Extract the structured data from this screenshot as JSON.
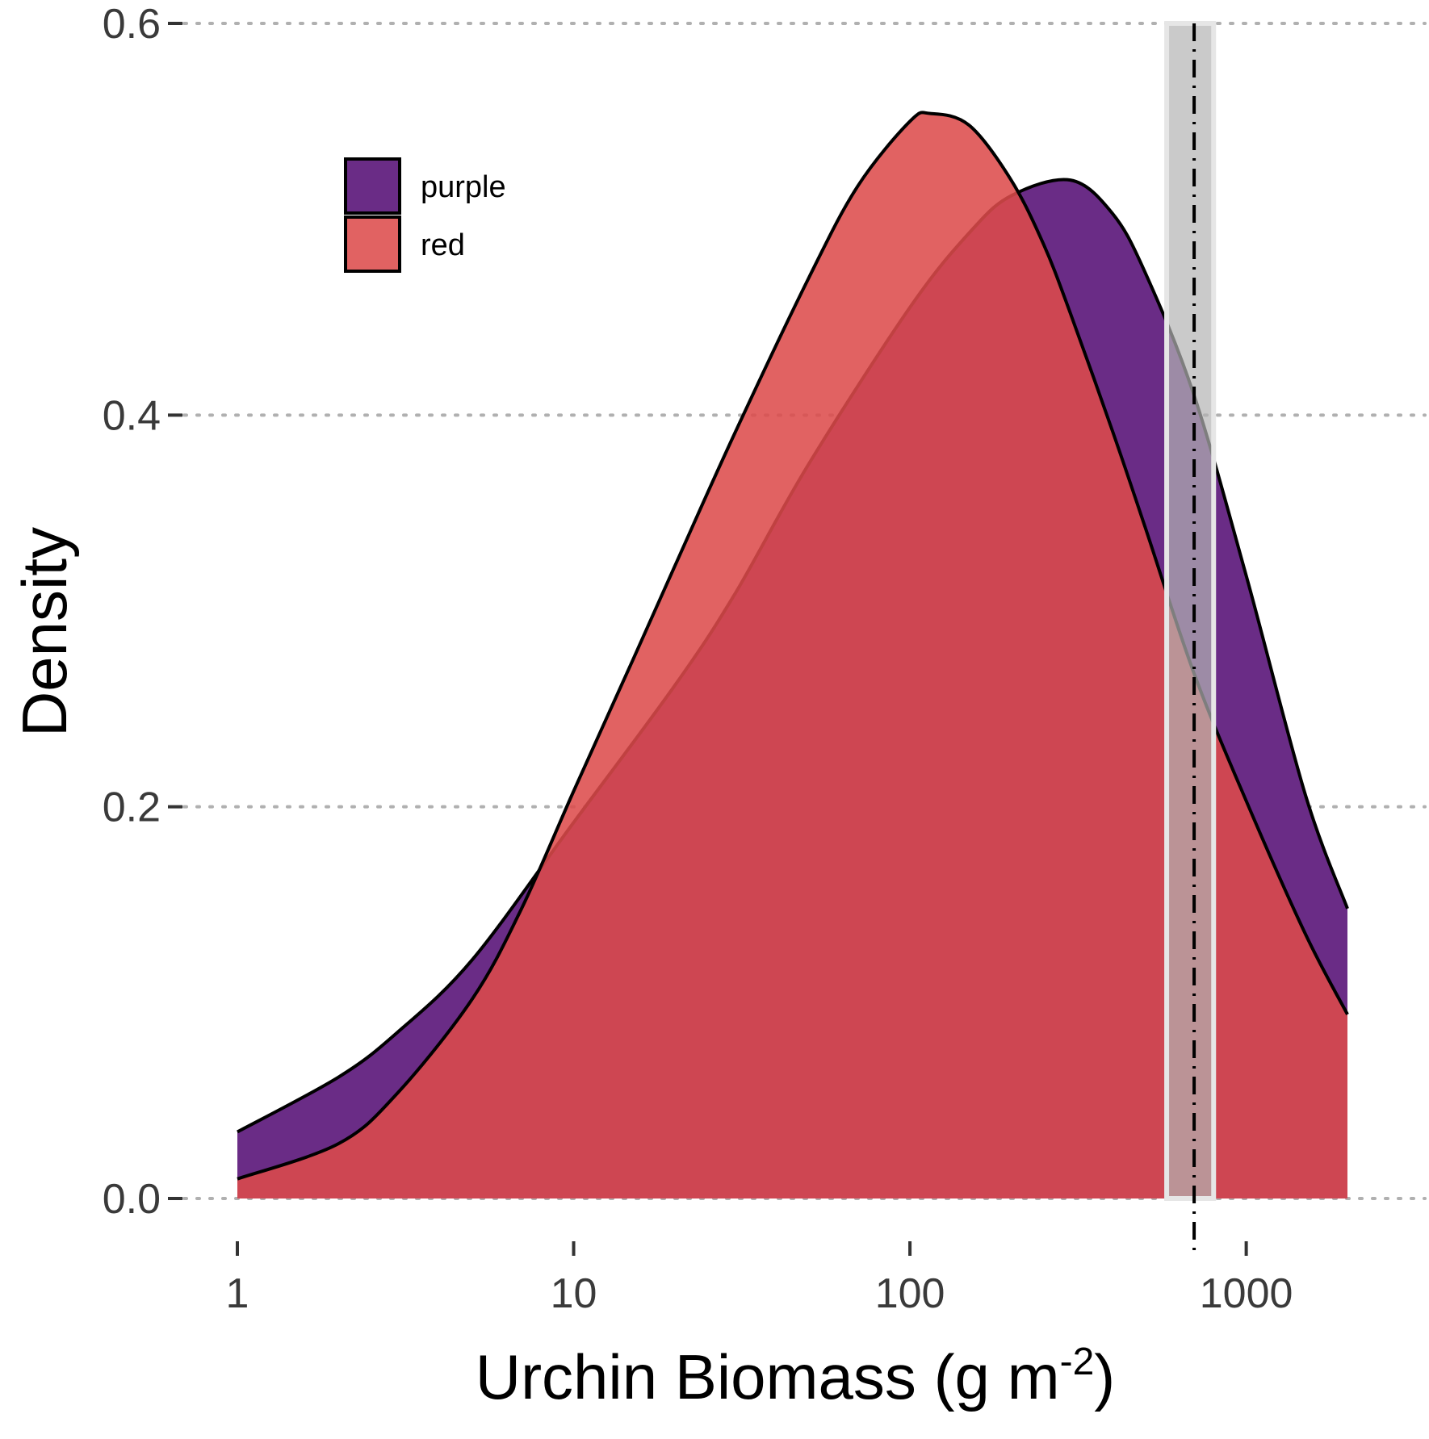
{
  "chart_data": {
    "type": "area",
    "xlabel": "Urchin Biomass (g m",
    "xlabel_superscript": "-2",
    "xlabel_suffix": ")",
    "ylabel": "Density",
    "x_scale": "log10",
    "xlim": [
      1,
      2000
    ],
    "ylim": [
      0,
      0.6
    ],
    "x_ticks": [
      1,
      10,
      100,
      1000
    ],
    "x_tick_labels": [
      "1",
      "10",
      "100",
      "1000"
    ],
    "y_ticks": [
      0,
      0.2,
      0.4,
      0.6
    ],
    "y_tick_labels": [
      "0.0",
      "0.2",
      "0.4",
      "0.6"
    ],
    "grid": "horizontal dotted",
    "legend_position": "top-left",
    "series": [
      {
        "name": "purple",
        "color": "#6a2c86",
        "x": [
          1,
          2,
          3,
          5,
          10,
          20,
          30,
          50,
          100,
          150,
          200,
          300,
          400,
          500,
          700,
          1000,
          1500,
          2000
        ],
        "y": [
          0.034,
          0.062,
          0.085,
          0.122,
          0.192,
          0.262,
          0.308,
          0.375,
          0.455,
          0.493,
          0.512,
          0.52,
          0.503,
          0.473,
          0.41,
          0.318,
          0.206,
          0.148
        ]
      },
      {
        "name": "red",
        "color": "#dd4b4b",
        "x": [
          1,
          2,
          3,
          5,
          7,
          10,
          15,
          20,
          30,
          50,
          70,
          100,
          115,
          150,
          200,
          250,
          300,
          400,
          500,
          700,
          1000,
          1500,
          2000
        ],
        "y": [
          0.01,
          0.028,
          0.054,
          0.102,
          0.148,
          0.208,
          0.275,
          0.323,
          0.39,
          0.47,
          0.517,
          0.55,
          0.554,
          0.548,
          0.52,
          0.487,
          0.452,
          0.392,
          0.343,
          0.268,
          0.203,
          0.135,
          0.094
        ]
      }
    ],
    "reference_line": {
      "x": 700,
      "band": [
        580,
        800
      ],
      "style": "dot-dash",
      "band_color": "#b3b3b3"
    }
  }
}
